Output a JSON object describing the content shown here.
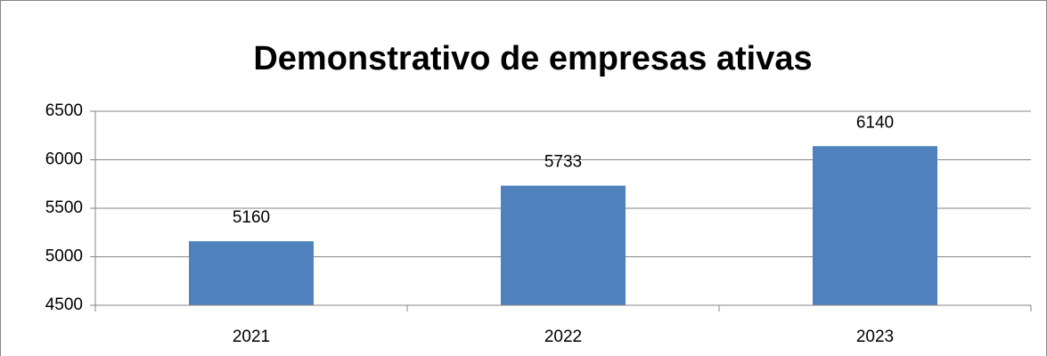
{
  "chart_data": {
    "type": "bar",
    "title": "Demonstrativo de empresas ativas",
    "categories": [
      "2021",
      "2022",
      "2023"
    ],
    "values": [
      5160,
      5733,
      6140
    ],
    "color": "#4f81bd",
    "ylim": [
      4500,
      6500
    ],
    "yticks": [
      4500,
      5000,
      5500,
      6000,
      6500
    ],
    "grid": true
  }
}
